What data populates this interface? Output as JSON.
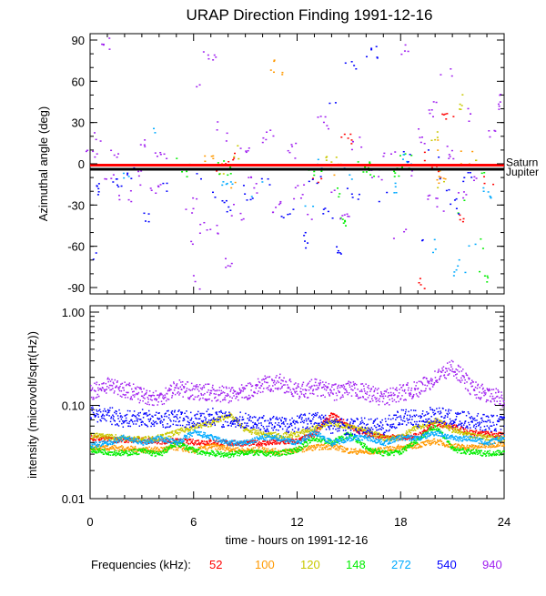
{
  "chart_data": [
    {
      "type": "scatter",
      "title": "URAP Direction Finding  1991-12-16",
      "ylabel": "Azimuthal angle (deg)",
      "xlim": [
        0,
        24
      ],
      "ylim": [
        -90,
        90
      ],
      "yticks": [
        "90",
        "60",
        "30",
        "0",
        "-30",
        "-60",
        "-90"
      ],
      "reference_lines": [
        {
          "name": "Saturn",
          "value": -1,
          "color": "#ff0000"
        },
        {
          "name": "Jupiter",
          "value": -4,
          "color": "#000000"
        }
      ],
      "series": [
        {
          "freq": "52",
          "color": "#ff0000",
          "points": [
            [
              7.5,
              -2
            ],
            [
              8.1,
              5
            ],
            [
              13.2,
              -8
            ],
            [
              14.8,
              20
            ],
            [
              19.5,
              8
            ],
            [
              20.1,
              -5
            ],
            [
              20.7,
              35
            ],
            [
              21.3,
              -40
            ],
            [
              19.2,
              -85
            ],
            [
              23.1,
              -10
            ]
          ]
        },
        {
          "freq": "100",
          "color": "#ff9900",
          "points": [
            [
              7.8,
              2
            ],
            [
              8.4,
              -12
            ],
            [
              10.8,
              70
            ],
            [
              14.2,
              -3
            ],
            [
              19.8,
              12
            ],
            [
              20.4,
              -8
            ],
            [
              21.8,
              5
            ],
            [
              6.8,
              5
            ]
          ]
        },
        {
          "freq": "120",
          "color": "#c8c800",
          "points": [
            [
              7.6,
              -4
            ],
            [
              8.2,
              10
            ],
            [
              13.9,
              5
            ],
            [
              19.9,
              18
            ],
            [
              20.3,
              -15
            ],
            [
              21.2,
              45
            ],
            [
              22.6,
              -2
            ]
          ]
        },
        {
          "freq": "148",
          "color": "#00ee00",
          "points": [
            [
              5.2,
              0
            ],
            [
              5.6,
              -3
            ],
            [
              7.7,
              -2
            ],
            [
              8.0,
              -6
            ],
            [
              13.0,
              -10
            ],
            [
              14.1,
              -18
            ],
            [
              14.6,
              -40
            ],
            [
              15.8,
              0
            ],
            [
              16.1,
              -5
            ],
            [
              17.8,
              -4
            ],
            [
              18.3,
              2
            ],
            [
              21.5,
              -30
            ],
            [
              22.5,
              -60
            ],
            [
              22.8,
              -80
            ],
            [
              23.0,
              -5
            ]
          ]
        },
        {
          "freq": "272",
          "color": "#00aaff",
          "points": [
            [
              2.1,
              -5
            ],
            [
              3.5,
              25
            ],
            [
              7.9,
              -10
            ],
            [
              9.6,
              -18
            ],
            [
              12.6,
              -25
            ],
            [
              13.4,
              -2
            ],
            [
              14.9,
              -8
            ],
            [
              17.5,
              -15
            ],
            [
              18.4,
              2
            ],
            [
              20.2,
              -60
            ],
            [
              21.4,
              -75
            ],
            [
              22.1,
              -55
            ],
            [
              22.9,
              -20
            ]
          ]
        },
        {
          "freq": "540",
          "color": "#0000ff",
          "points": [
            [
              0.2,
              -18
            ],
            [
              0.5,
              -68
            ],
            [
              1.5,
              -12
            ],
            [
              2.3,
              -5
            ],
            [
              3.3,
              -40
            ],
            [
              4.3,
              -15
            ],
            [
              6.4,
              -12
            ],
            [
              7.1,
              -25
            ],
            [
              7.9,
              -30
            ],
            [
              9.2,
              -20
            ],
            [
              10.1,
              -10
            ],
            [
              11.4,
              -35
            ],
            [
              12.3,
              -55
            ],
            [
              13.0,
              -8
            ],
            [
              13.8,
              -35
            ],
            [
              14.4,
              -65
            ],
            [
              15.2,
              -20
            ],
            [
              16.9,
              -25
            ],
            [
              18.3,
              5
            ],
            [
              19.0,
              -50
            ],
            [
              19.8,
              5
            ],
            [
              20.6,
              -15
            ],
            [
              21.0,
              -30
            ],
            [
              21.7,
              -10
            ],
            [
              15.0,
              70
            ],
            [
              14.2,
              45
            ],
            [
              16.3,
              80
            ]
          ]
        },
        {
          "freq": "940",
          "color": "#a020f0",
          "points": [
            [
              0.1,
              5
            ],
            [
              0.4,
              20
            ],
            [
              0.8,
              88
            ],
            [
              1.0,
              -5
            ],
            [
              1.4,
              10
            ],
            [
              2.0,
              -25
            ],
            [
              2.6,
              -10
            ],
            [
              3.2,
              12
            ],
            [
              3.8,
              -20
            ],
            [
              4.1,
              5
            ],
            [
              5.8,
              -30
            ],
            [
              6.0,
              -60
            ],
            [
              6.3,
              -85
            ],
            [
              6.6,
              -45
            ],
            [
              6.2,
              60
            ],
            [
              6.9,
              80
            ],
            [
              7.3,
              25
            ],
            [
              7.6,
              -50
            ],
            [
              7.9,
              -70
            ],
            [
              8.2,
              18
            ],
            [
              8.5,
              -35
            ],
            [
              9.0,
              10
            ],
            [
              9.5,
              -15
            ],
            [
              10.3,
              20
            ],
            [
              10.9,
              -30
            ],
            [
              11.6,
              10
            ],
            [
              12.1,
              -20
            ],
            [
              12.6,
              -38
            ],
            [
              13.5,
              30
            ],
            [
              14.0,
              -15
            ],
            [
              14.7,
              -35
            ],
            [
              15.4,
              15
            ],
            [
              16.5,
              -10
            ],
            [
              17.3,
              5
            ],
            [
              17.9,
              -50
            ],
            [
              18.1,
              85
            ],
            [
              18.6,
              -10
            ],
            [
              19.0,
              20
            ],
            [
              19.4,
              -20
            ],
            [
              19.9,
              40
            ],
            [
              20.3,
              -30
            ],
            [
              20.6,
              70
            ],
            [
              21.0,
              10
            ],
            [
              21.4,
              -20
            ],
            [
              22.0,
              35
            ],
            [
              22.4,
              -8
            ],
            [
              23.2,
              20
            ],
            [
              23.7,
              45
            ]
          ]
        }
      ]
    },
    {
      "type": "line",
      "ylabel": "intensity (microvolt/sqrt(Hz))",
      "xlabel": "time - hours on 1991-12-16",
      "xlim": [
        0,
        24
      ],
      "ylim": [
        0.01,
        1.0
      ],
      "yscale": "log",
      "xticks": [
        "0",
        "6",
        "12",
        "18",
        "24"
      ],
      "yticks": [
        "1.00",
        "0.10",
        "0.01"
      ],
      "x": [
        0,
        1,
        2,
        3,
        4,
        5,
        6,
        7,
        8,
        9,
        10,
        11,
        12,
        13,
        14,
        15,
        16,
        17,
        18,
        19,
        20,
        21,
        22,
        23,
        24
      ],
      "series": [
        {
          "freq": "52",
          "color": "#ff0000",
          "values": [
            0.045,
            0.044,
            0.043,
            0.043,
            0.042,
            0.042,
            0.041,
            0.041,
            0.04,
            0.04,
            0.04,
            0.041,
            0.042,
            0.05,
            0.08,
            0.06,
            0.05,
            0.046,
            0.046,
            0.048,
            0.065,
            0.06,
            0.052,
            0.05,
            0.048
          ]
        },
        {
          "freq": "100",
          "color": "#ff9900",
          "values": [
            0.036,
            0.036,
            0.035,
            0.034,
            0.034,
            0.036,
            0.033,
            0.037,
            0.035,
            0.033,
            0.034,
            0.032,
            0.034,
            0.036,
            0.037,
            0.033,
            0.032,
            0.034,
            0.036,
            0.038,
            0.042,
            0.037,
            0.036,
            0.038,
            0.04
          ]
        },
        {
          "freq": "120",
          "color": "#c8c800",
          "values": [
            0.048,
            0.047,
            0.045,
            0.044,
            0.046,
            0.052,
            0.06,
            0.065,
            0.08,
            0.055,
            0.05,
            0.048,
            0.05,
            0.058,
            0.066,
            0.06,
            0.055,
            0.045,
            0.046,
            0.06,
            0.07,
            0.055,
            0.048,
            0.046,
            0.045
          ]
        },
        {
          "freq": "148",
          "color": "#00ee00",
          "values": [
            0.034,
            0.032,
            0.031,
            0.033,
            0.03,
            0.04,
            0.033,
            0.031,
            0.03,
            0.032,
            0.031,
            0.031,
            0.034,
            0.045,
            0.04,
            0.05,
            0.035,
            0.031,
            0.032,
            0.044,
            0.06,
            0.034,
            0.032,
            0.031,
            0.032
          ]
        },
        {
          "freq": "272",
          "color": "#00aaff",
          "values": [
            0.038,
            0.04,
            0.046,
            0.04,
            0.045,
            0.04,
            0.052,
            0.046,
            0.04,
            0.04,
            0.046,
            0.045,
            0.04,
            0.052,
            0.04,
            0.045,
            0.046,
            0.04,
            0.046,
            0.045,
            0.052,
            0.045,
            0.045,
            0.04,
            0.046
          ]
        },
        {
          "freq": "540",
          "color": "#0000ff",
          "values": [
            0.085,
            0.08,
            0.072,
            0.075,
            0.07,
            0.075,
            0.07,
            0.078,
            0.07,
            0.07,
            0.066,
            0.062,
            0.066,
            0.072,
            0.062,
            0.06,
            0.061,
            0.06,
            0.076,
            0.072,
            0.082,
            0.072,
            0.07,
            0.066,
            0.065
          ]
        },
        {
          "freq": "940",
          "color": "#a020f0",
          "values": [
            0.14,
            0.17,
            0.15,
            0.13,
            0.12,
            0.16,
            0.14,
            0.14,
            0.13,
            0.14,
            0.17,
            0.18,
            0.14,
            0.16,
            0.14,
            0.15,
            0.14,
            0.12,
            0.14,
            0.15,
            0.2,
            0.26,
            0.16,
            0.13,
            0.12
          ]
        }
      ]
    }
  ],
  "legend": {
    "label": "Frequencies (kHz):",
    "placement": "bottom"
  }
}
